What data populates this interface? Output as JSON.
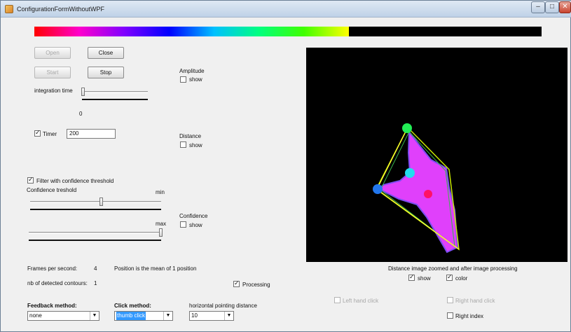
{
  "window": {
    "title": "ConfigurationFormWithoutWPF"
  },
  "buttons": {
    "open": "Open",
    "close": "Close",
    "start": "Start",
    "stop": "Stop"
  },
  "amplitude": {
    "label": "Amplitude",
    "show": "show"
  },
  "integration": {
    "label": "integration time",
    "value": "0"
  },
  "timer": {
    "label": "Timer",
    "value": "200"
  },
  "distance": {
    "label": "Distance",
    "show": "show"
  },
  "confidence_filter": {
    "label": "Filter with confidence threshold",
    "threshold_label": "Confidence treshold",
    "min": "min",
    "max": "max"
  },
  "confidence": {
    "label": "Confidence",
    "show": "show"
  },
  "stats": {
    "fps_label": "Frames per second:",
    "fps_value": "4",
    "position_text": "Position is the mean of 1 position",
    "contours_label": "nb of detected contours:",
    "contours_value": "1"
  },
  "processing": {
    "label": "Processing"
  },
  "feedback": {
    "label": "Feedback method:",
    "value": "none"
  },
  "click": {
    "label": "Click method:",
    "value": "thumb click"
  },
  "pointing": {
    "label": "horizontal pointing distance",
    "value": "10"
  },
  "display": {
    "caption": "Distance image zoomed and after image processing",
    "show": "show",
    "color": "color"
  },
  "hands": {
    "left_click": "Left hand click",
    "right_click": "Right hand click",
    "right_index": "Right index"
  },
  "colors": {
    "accent_select": "#3399ff",
    "image_bg": "#000000",
    "hand_fill": "#e040fb"
  },
  "progress": {
    "fraction": 0.62
  }
}
